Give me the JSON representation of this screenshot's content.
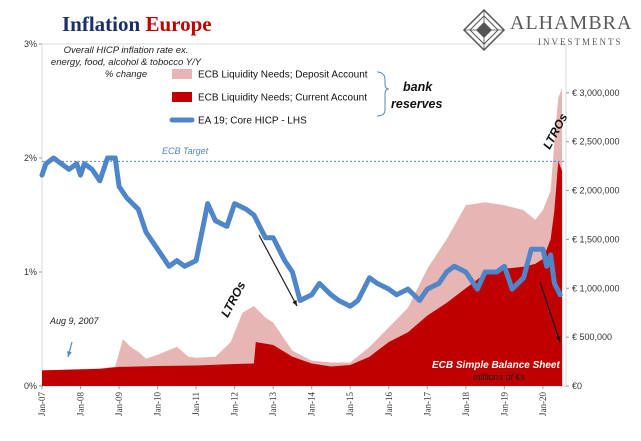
{
  "title": {
    "part1": "Inflation",
    "part2": "Europe"
  },
  "logo": {
    "name": "ALHAMBRA",
    "sub": "INVESTMENTS"
  },
  "subtitle": "Overall HICP inflation rate ex. energy, food, alcohol & tobocco Y/Y % change",
  "annotations": {
    "bank_reserves_1": "bank",
    "bank_reserves_2": "reserves",
    "ltros_late": "LTROs",
    "ltros_early": "LTROs",
    "aug": "Aug 9, 2007",
    "ecb_target": "ECB Target",
    "balance_sheet_1": "ECB Simple Balance Sheet",
    "balance_sheet_2": "millions of €s"
  },
  "colors": {
    "deposit": "#e8b5b5",
    "current": "#c00000",
    "hicp": "#4f86c9",
    "target": "#4f86c9",
    "arrow": "#1a1a1a",
    "title_blue": "#1b2f6b",
    "title_red": "#c00000"
  },
  "chart_data": {
    "type": "area",
    "x_ticks": [
      "Jan-07",
      "Jan-08",
      "Jan-09",
      "Jan-10",
      "Jan-11",
      "Jan-12",
      "Jan-13",
      "Jan-14",
      "Jan-15",
      "Jan-16",
      "Jan-17",
      "Jan-18",
      "Jan-19",
      "Jan-20"
    ],
    "y_left_ticks": [
      "0%",
      "1%",
      "2%",
      "3%"
    ],
    "y_left_lim": [
      0,
      3
    ],
    "y_right_ticks": [
      "€0",
      "€ 500,000",
      "€ 1,000,000",
      "€ 1,500,000",
      "€ 2,000,000",
      "€ 2,500,000",
      "€ 3,000,000"
    ],
    "y_right_lim": [
      0,
      3500000
    ],
    "ecb_target_pct": 1.97,
    "legend": [
      {
        "name": "ECB Liquidity Needs; Deposit Account",
        "color": "#e8b5b5",
        "kind": "box"
      },
      {
        "name": "ECB Liquidity Needs; Current Account",
        "color": "#c00000",
        "kind": "box"
      },
      {
        "name": "EA 19; Core HICP - LHS",
        "color": "#4f86c9",
        "kind": "line"
      }
    ],
    "series": [
      {
        "name": "ECB Liquidity Needs; Current Account",
        "axis": "right",
        "points": [
          [
            2007.0,
            160000
          ],
          [
            2008.5,
            175000
          ],
          [
            2009.0,
            195000
          ],
          [
            2010.0,
            205000
          ],
          [
            2011.0,
            210000
          ],
          [
            2012.0,
            225000
          ],
          [
            2012.5,
            230000
          ],
          [
            2012.55,
            450000
          ],
          [
            2013.0,
            420000
          ],
          [
            2013.5,
            300000
          ],
          [
            2014.0,
            230000
          ],
          [
            2014.5,
            200000
          ],
          [
            2015.0,
            215000
          ],
          [
            2015.5,
            300000
          ],
          [
            2016.0,
            450000
          ],
          [
            2016.5,
            550000
          ],
          [
            2017.0,
            720000
          ],
          [
            2017.5,
            850000
          ],
          [
            2018.0,
            1000000
          ],
          [
            2018.5,
            1150000
          ],
          [
            2019.0,
            1200000
          ],
          [
            2019.5,
            1220000
          ],
          [
            2019.8,
            1250000
          ],
          [
            2020.0,
            1300000
          ],
          [
            2020.2,
            1500000
          ],
          [
            2020.3,
            1800000
          ],
          [
            2020.4,
            2300000
          ],
          [
            2020.5,
            2200000
          ]
        ]
      },
      {
        "name": "ECB Liquidity Needs; Deposit Account",
        "axis": "right",
        "points": [
          [
            2007.0,
            160000
          ],
          [
            2008.5,
            180000
          ],
          [
            2008.9,
            200000
          ],
          [
            2009.1,
            480000
          ],
          [
            2009.3,
            400000
          ],
          [
            2009.5,
            350000
          ],
          [
            2009.7,
            280000
          ],
          [
            2010.0,
            320000
          ],
          [
            2010.5,
            400000
          ],
          [
            2010.8,
            300000
          ],
          [
            2011.0,
            290000
          ],
          [
            2011.5,
            300000
          ],
          [
            2011.9,
            450000
          ],
          [
            2012.2,
            750000
          ],
          [
            2012.5,
            820000
          ],
          [
            2012.8,
            700000
          ],
          [
            2013.0,
            650000
          ],
          [
            2013.5,
            360000
          ],
          [
            2014.0,
            260000
          ],
          [
            2014.5,
            240000
          ],
          [
            2015.0,
            240000
          ],
          [
            2015.5,
            400000
          ],
          [
            2016.0,
            600000
          ],
          [
            2016.5,
            800000
          ],
          [
            2017.0,
            1200000
          ],
          [
            2017.5,
            1500000
          ],
          [
            2018.0,
            1850000
          ],
          [
            2018.5,
            1880000
          ],
          [
            2019.0,
            1850000
          ],
          [
            2019.5,
            1800000
          ],
          [
            2019.8,
            1700000
          ],
          [
            2020.0,
            1800000
          ],
          [
            2020.2,
            2000000
          ],
          [
            2020.3,
            2500000
          ],
          [
            2020.4,
            2950000
          ],
          [
            2020.5,
            3050000
          ]
        ]
      },
      {
        "name": "EA 19; Core HICP - LHS",
        "axis": "left",
        "points": [
          [
            2007.0,
            1.85
          ],
          [
            2007.1,
            1.95
          ],
          [
            2007.3,
            2.0
          ],
          [
            2007.5,
            1.95
          ],
          [
            2007.7,
            1.9
          ],
          [
            2007.9,
            1.95
          ],
          [
            2008.0,
            1.85
          ],
          [
            2008.1,
            1.95
          ],
          [
            2008.3,
            1.9
          ],
          [
            2008.5,
            1.8
          ],
          [
            2008.7,
            2.0
          ],
          [
            2008.9,
            2.0
          ],
          [
            2009.0,
            1.75
          ],
          [
            2009.2,
            1.65
          ],
          [
            2009.5,
            1.55
          ],
          [
            2009.7,
            1.35
          ],
          [
            2010.0,
            1.2
          ],
          [
            2010.3,
            1.05
          ],
          [
            2010.5,
            1.1
          ],
          [
            2010.7,
            1.05
          ],
          [
            2011.0,
            1.1
          ],
          [
            2011.3,
            1.6
          ],
          [
            2011.5,
            1.45
          ],
          [
            2011.8,
            1.4
          ],
          [
            2012.0,
            1.6
          ],
          [
            2012.3,
            1.55
          ],
          [
            2012.5,
            1.5
          ],
          [
            2012.8,
            1.3
          ],
          [
            2013.0,
            1.3
          ],
          [
            2013.3,
            1.1
          ],
          [
            2013.5,
            1.0
          ],
          [
            2013.7,
            0.75
          ],
          [
            2014.0,
            0.8
          ],
          [
            2014.2,
            0.9
          ],
          [
            2014.5,
            0.8
          ],
          [
            2014.7,
            0.75
          ],
          [
            2015.0,
            0.7
          ],
          [
            2015.2,
            0.75
          ],
          [
            2015.5,
            0.95
          ],
          [
            2015.7,
            0.9
          ],
          [
            2016.0,
            0.85
          ],
          [
            2016.2,
            0.8
          ],
          [
            2016.5,
            0.85
          ],
          [
            2016.8,
            0.75
          ],
          [
            2017.0,
            0.85
          ],
          [
            2017.3,
            0.9
          ],
          [
            2017.5,
            1.0
          ],
          [
            2017.7,
            1.05
          ],
          [
            2018.0,
            1.0
          ],
          [
            2018.3,
            0.85
          ],
          [
            2018.5,
            1.0
          ],
          [
            2018.8,
            1.0
          ],
          [
            2019.0,
            1.05
          ],
          [
            2019.2,
            0.85
          ],
          [
            2019.5,
            0.95
          ],
          [
            2019.7,
            1.2
          ],
          [
            2019.9,
            1.2
          ],
          [
            2020.0,
            1.2
          ],
          [
            2020.1,
            1.05
          ],
          [
            2020.2,
            1.15
          ],
          [
            2020.3,
            0.9
          ],
          [
            2020.45,
            0.8
          ]
        ]
      }
    ]
  }
}
